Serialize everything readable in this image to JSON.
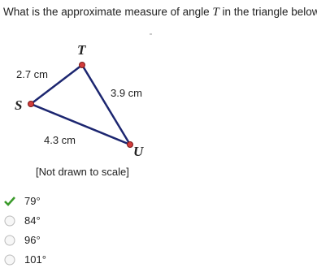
{
  "question": {
    "before": "What is the approximate measure of angle ",
    "variable": "T",
    "after": " in the triangle below?"
  },
  "diagram": {
    "vertices": [
      {
        "label": "T"
      },
      {
        "label": "S"
      },
      {
        "label": "U"
      }
    ],
    "sides": [
      {
        "label": "2.7 cm"
      },
      {
        "label": "3.9 cm"
      },
      {
        "label": "4.3 cm"
      }
    ],
    "note": "[Not drawn to scale]"
  },
  "options": [
    {
      "label": "79°",
      "selected": true
    },
    {
      "label": "84°",
      "selected": false
    },
    {
      "label": "96°",
      "selected": false
    },
    {
      "label": "101°",
      "selected": false
    }
  ]
}
